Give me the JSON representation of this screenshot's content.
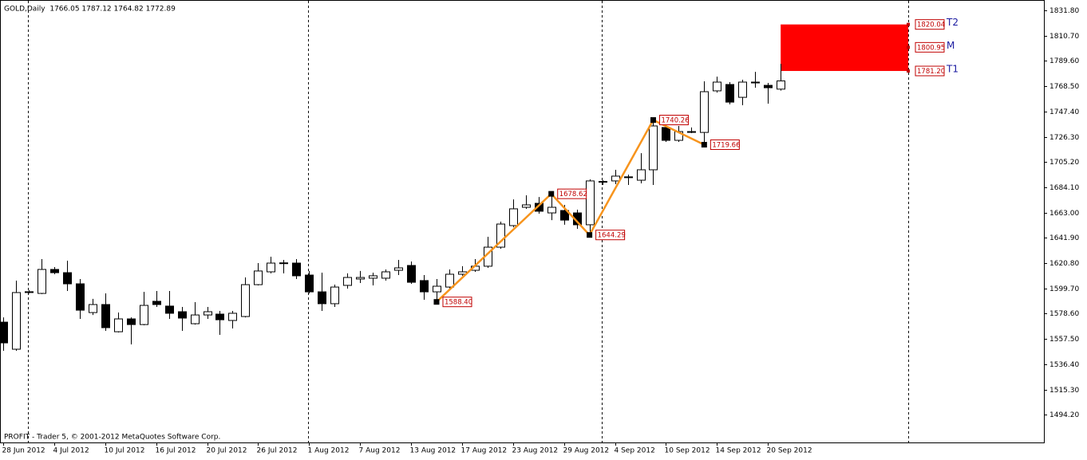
{
  "chart_data": {
    "type": "candlestick",
    "title": "GOLD,Daily  1766.05 1787.12 1764.82 1772.89",
    "footer": "PROFIT - Trader 5, © 2001-2012 MetaQuotes Software Corp.",
    "categories": [
      "28 Jun 2012",
      null,
      null,
      null,
      "4 Jul 2012",
      null,
      null,
      null,
      "10 Jul 2012",
      null,
      null,
      null,
      "16 Jul 2012",
      null,
      null,
      null,
      "20 Jul 2012",
      null,
      null,
      null,
      "26 Jul 2012",
      null,
      null,
      null,
      "1 Aug 2012",
      null,
      null,
      null,
      "7 Aug 2012",
      null,
      null,
      null,
      "13 Aug 2012",
      null,
      null,
      null,
      "17 Aug 2012",
      null,
      null,
      null,
      "23 Aug 2012",
      null,
      null,
      null,
      "29 Aug 2012",
      null,
      null,
      null,
      "4 Sep 2012",
      null,
      null,
      null,
      "10 Sep 2012",
      null,
      null,
      null,
      "14 Sep 2012",
      null,
      null,
      null,
      "20 Sep 2012",
      null
    ],
    "open": [
      1571.5,
      1548.9,
      1596.8,
      1595.5,
      1615.5,
      1612.8,
      1603.5,
      1579.5,
      1586.2,
      1563.5,
      1574.2,
      1569.5,
      1588.9,
      1584.9,
      1580.2,
      1570.2,
      1577.5,
      1578.2,
      1572.9,
      1576.2,
      1602.8,
      1613.5,
      1620.8,
      1620.8,
      1610.8,
      1596.8,
      1586.9,
      1602.2,
      1607.5,
      1608.2,
      1608.2,
      1614.8,
      1618.8,
      1606.2,
      1596.8,
      1600.8,
      1611.5,
      1614.8,
      1618.2,
      1634.1,
      1652.1,
      1667.4,
      1670.7,
      1662.7,
      1664.7,
      1662.7,
      1652.8,
      1688.7,
      1689.4,
      1692.5,
      1690.0,
      1698.7,
      1734.0,
      1723.3,
      1730.3,
      1729.9,
      1764.6,
      1769.9,
      1759.2,
      1771.6,
      1769.2,
      1766.05
    ],
    "high": [
      1575.5,
      1606.2,
      1598.2,
      1624.1,
      1617.5,
      1622.8,
      1607.5,
      1590.9,
      1595.5,
      1579.5,
      1575.5,
      1596.8,
      1597.5,
      1597.5,
      1584.2,
      1588.2,
      1584.2,
      1580.9,
      1580.9,
      1608.8,
      1620.8,
      1626.1,
      1623.5,
      1624.1,
      1614.2,
      1612.8,
      1602.8,
      1612.2,
      1614.2,
      1612.8,
      1615.5,
      1623.5,
      1622.1,
      1610.8,
      1607.5,
      1615.5,
      1618.2,
      1624.1,
      1642.8,
      1655.4,
      1674.0,
      1677.4,
      1676.0,
      1678.62,
      1669.4,
      1665.4,
      1690.7,
      1690.0,
      1698.7,
      1694.7,
      1712.6,
      1740.26,
      1737.3,
      1735.3,
      1734.0,
      1772.6,
      1776.5,
      1771.9,
      1773.9,
      1780.5,
      1771.2,
      1787.12
    ],
    "low": [
      1547.6,
      1547.6,
      1595.5,
      1594.9,
      1611.5,
      1597.5,
      1574.2,
      1577.5,
      1564.2,
      1562.9,
      1552.9,
      1568.9,
      1584.2,
      1574.2,
      1564.2,
      1569.5,
      1574.2,
      1560.9,
      1566.2,
      1575.5,
      1602.2,
      1612.2,
      1612.2,
      1607.5,
      1595.5,
      1580.9,
      1584.2,
      1599.5,
      1604.2,
      1602.2,
      1606.2,
      1610.8,
      1603.5,
      1590.2,
      1588.4,
      1599.5,
      1610.2,
      1613.5,
      1616.8,
      1632.8,
      1650.7,
      1666.1,
      1662.1,
      1656.7,
      1652.8,
      1649.4,
      1644.29,
      1686.0,
      1686.7,
      1686.0,
      1687.4,
      1686.0,
      1722.0,
      1722.0,
      1729.3,
      1719.66,
      1763.2,
      1753.3,
      1752.6,
      1767.2,
      1753.9,
      1764.82
    ],
    "close": [
      1554.2,
      1596.2,
      1596.9,
      1615.5,
      1612.8,
      1603.5,
      1581.5,
      1586.2,
      1566.9,
      1574.2,
      1569.5,
      1585.5,
      1586.2,
      1578.9,
      1574.9,
      1577.5,
      1580.2,
      1573.5,
      1578.9,
      1602.8,
      1614.2,
      1620.8,
      1621.0,
      1610.2,
      1596.8,
      1586.9,
      1600.8,
      1608.8,
      1608.8,
      1610.2,
      1613.5,
      1616.8,
      1604.8,
      1596.8,
      1601.5,
      1611.5,
      1613.5,
      1618.2,
      1634.1,
      1653.4,
      1666.1,
      1669.4,
      1664.1,
      1667.4,
      1656.7,
      1652.8,
      1689.4,
      1689.0,
      1693.4,
      1692.8,
      1698.7,
      1735.3,
      1723.3,
      1730.6,
      1730.6,
      1763.9,
      1771.9,
      1755.2,
      1771.9,
      1771.9,
      1767.2,
      1772.89
    ],
    "up_color": "#ffffff",
    "down_color": "#000000",
    "zigzag": {
      "color": "#f7941d",
      "values": [
        null,
        null,
        null,
        null,
        null,
        null,
        null,
        null,
        null,
        null,
        null,
        null,
        null,
        null,
        null,
        null,
        null,
        null,
        null,
        null,
        null,
        null,
        null,
        null,
        null,
        null,
        null,
        null,
        null,
        null,
        null,
        null,
        null,
        null,
        1588.4,
        null,
        null,
        null,
        null,
        null,
        null,
        null,
        null,
        1678.62,
        null,
        null,
        1644.29,
        null,
        null,
        null,
        null,
        1740.26,
        null,
        null,
        null,
        1719.66,
        null,
        null,
        null,
        null,
        null,
        null
      ],
      "value_labels": [
        null,
        null,
        null,
        null,
        null,
        null,
        null,
        null,
        null,
        null,
        null,
        null,
        null,
        null,
        null,
        null,
        null,
        null,
        null,
        null,
        null,
        null,
        null,
        null,
        null,
        null,
        null,
        null,
        null,
        null,
        null,
        null,
        null,
        null,
        "1588.40",
        null,
        null,
        null,
        null,
        null,
        null,
        null,
        null,
        "1678.62",
        null,
        null,
        "1644.29",
        null,
        null,
        null,
        null,
        "1740.26",
        null,
        null,
        null,
        "1719.66",
        null,
        null,
        null,
        null,
        null,
        null
      ]
    },
    "targets": {
      "color": "#ff0000",
      "levels": [
        {
          "name": "T2",
          "value": 1820.04
        },
        {
          "name": "M",
          "value": 1800.95
        },
        {
          "name": "T1",
          "value": 1781.2,
          "label": "1781.20"
        }
      ]
    },
    "ylim": [
      1471.05,
      1840.45
    ],
    "yticks": [
      {
        "value": 1831.8,
        "label": "1831.80"
      },
      {
        "value": 1810.7,
        "label": "1810.70"
      },
      {
        "value": 1789.6,
        "label": "1789.60"
      },
      {
        "value": 1768.5,
        "label": "1768.50"
      },
      {
        "value": 1747.4,
        "label": "1747.40"
      },
      {
        "value": 1726.3,
        "label": "1726.30"
      },
      {
        "value": 1705.2,
        "label": "1705.20"
      },
      {
        "value": 1684.1,
        "label": "1684.10"
      },
      {
        "value": 1663,
        "label": "1663.00"
      },
      {
        "value": 1641.9,
        "label": "1641.90"
      },
      {
        "value": 1620.8,
        "label": "1620.80"
      },
      {
        "value": 1599.7,
        "label": "1599.70"
      },
      {
        "value": 1578.6,
        "label": "1578.60"
      },
      {
        "value": 1557.5,
        "label": "1557.50"
      },
      {
        "value": 1536.4,
        "label": "1536.40"
      },
      {
        "value": 1515.3,
        "label": "1515.30"
      },
      {
        "value": 1494.2,
        "label": "1494.20"
      }
    ]
  }
}
